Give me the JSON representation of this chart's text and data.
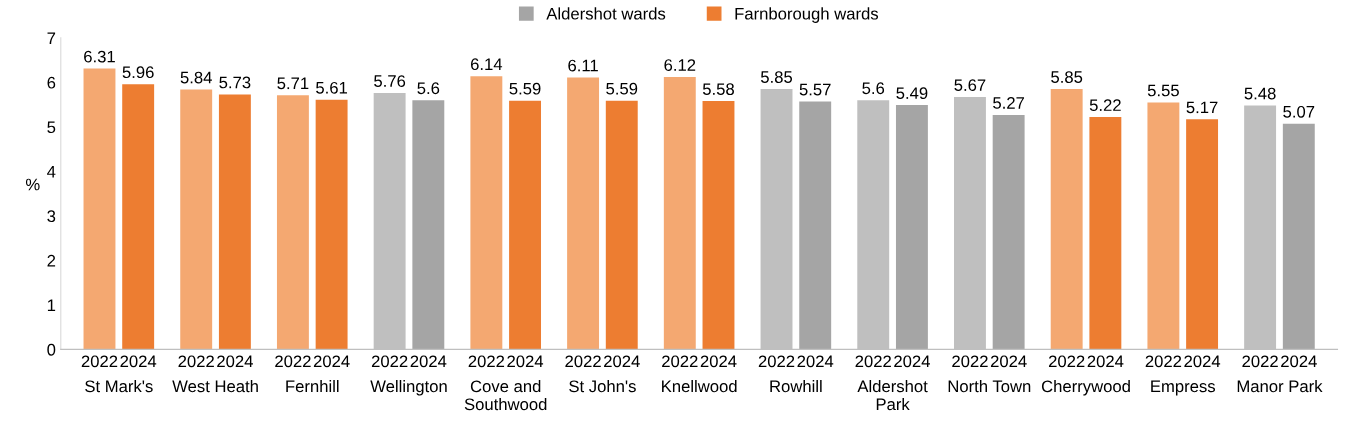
{
  "chart_data": {
    "type": "bar",
    "ylabel": "%",
    "categories": [
      "St Mark's",
      "West Heath",
      "Fernhill",
      "Wellington",
      "Cove and\nSouthwood",
      "St John's",
      "Knellwood",
      "Rowhill",
      "Aldershot\nPark",
      "North Town",
      "Cherrywood",
      "Empress",
      "Manor Park"
    ],
    "series": [
      {
        "name": "2022",
        "values": [
          6.31,
          5.84,
          5.71,
          5.76,
          6.14,
          6.11,
          6.12,
          5.85,
          5.6,
          5.67,
          5.85,
          5.55,
          5.48
        ],
        "colors": [
          "#f4a871",
          "#f4a871",
          "#f4a871",
          "#bfbfbf",
          "#f4a871",
          "#f4a871",
          "#f4a871",
          "#bfbfbf",
          "#bfbfbf",
          "#bfbfbf",
          "#f4a871",
          "#f4a871",
          "#bfbfbf"
        ]
      },
      {
        "name": "2024",
        "values": [
          5.96,
          5.73,
          5.61,
          5.6,
          5.59,
          5.59,
          5.58,
          5.57,
          5.49,
          5.27,
          5.22,
          5.17,
          5.07
        ],
        "colors": [
          "#ed7d31",
          "#ed7d31",
          "#ed7d31",
          "#a5a5a5",
          "#ed7d31",
          "#ed7d31",
          "#ed7d31",
          "#a5a5a5",
          "#a5a5a5",
          "#a5a5a5",
          "#ed7d31",
          "#ed7d31",
          "#a5a5a5"
        ]
      },
      {
        "name": "Aldershot wards",
        "color": "#a5a5a5",
        "values": [
          null,
          null,
          null,
          null,
          null,
          null,
          null,
          null,
          null,
          null,
          null,
          null,
          null
        ]
      },
      {
        "name": "Farnborough wards",
        "color": "#ed7d31",
        "values": [
          null,
          null,
          null,
          null,
          null,
          null,
          null,
          null,
          null,
          null,
          null,
          null,
          null
        ]
      }
    ],
    "ylim": [
      0,
      7
    ],
    "yticks": [
      0,
      1,
      2,
      3,
      4,
      5,
      6,
      7
    ],
    "data_labels": true,
    "legend": "top",
    "grid": false
  }
}
